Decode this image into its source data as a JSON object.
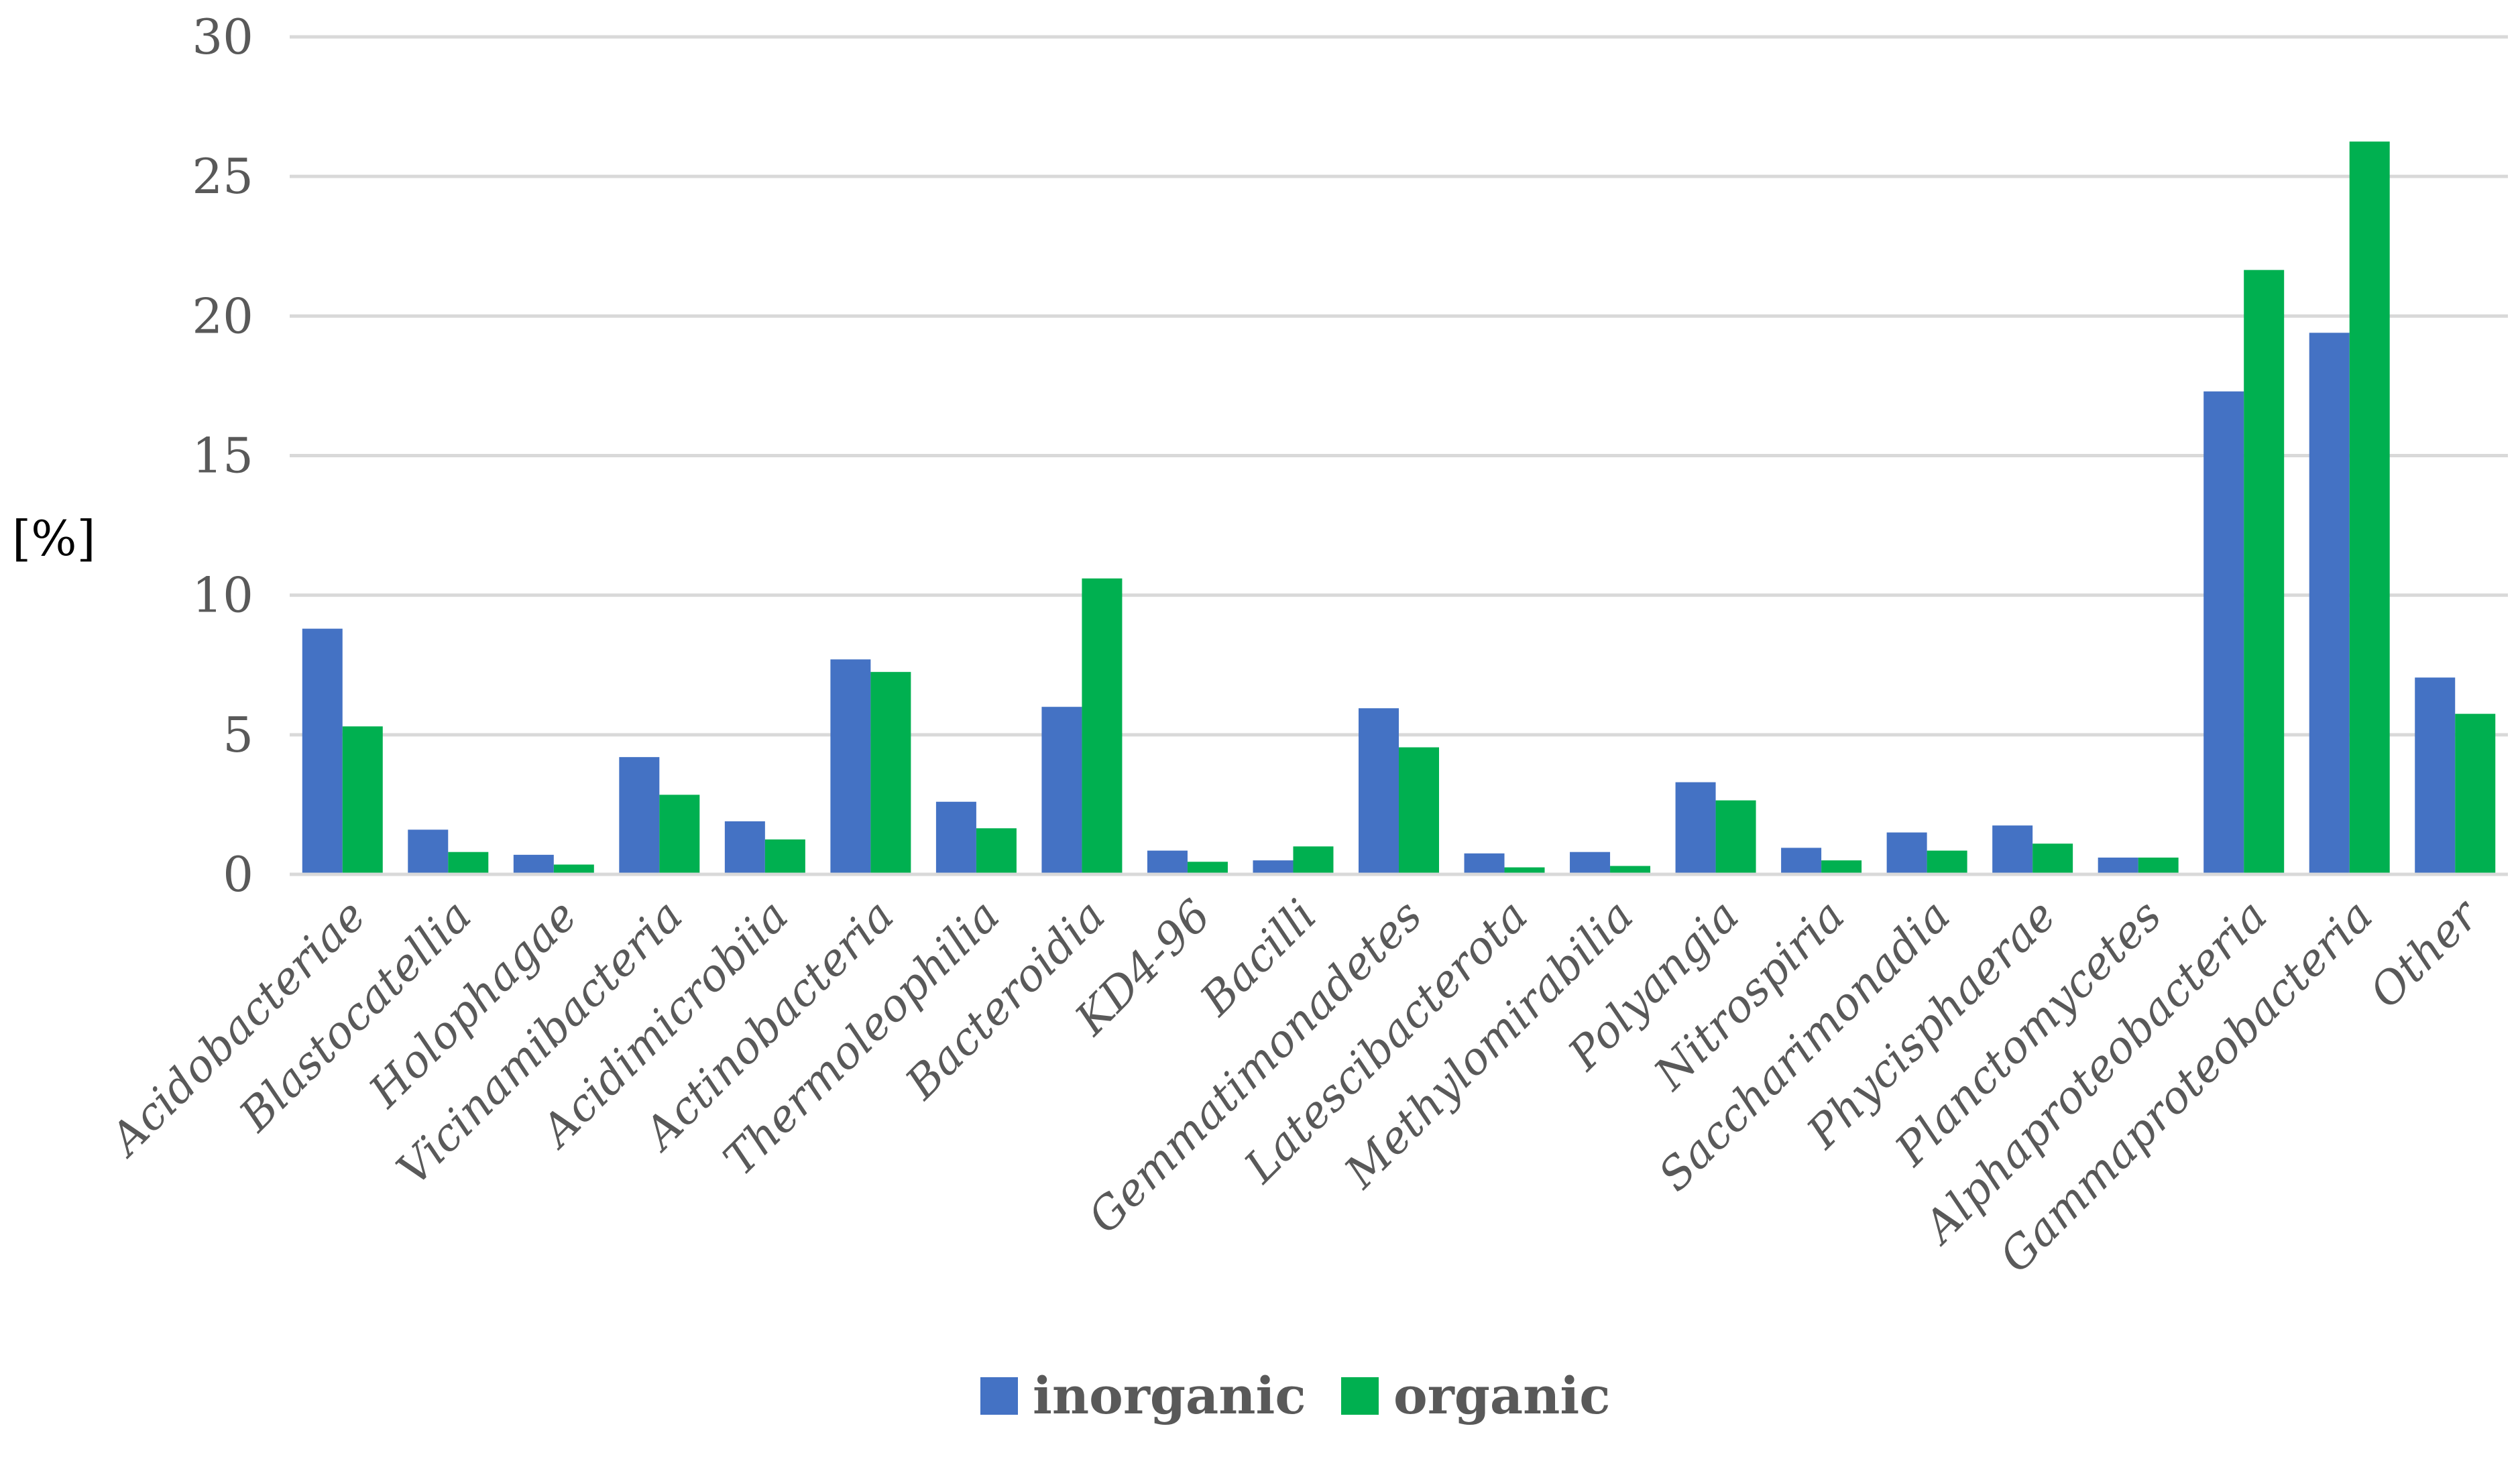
{
  "chart_data": {
    "type": "bar",
    "title": "",
    "xlabel": "",
    "ylabel": "[%]",
    "ylim": [
      0,
      30
    ],
    "yticks": [
      0,
      5,
      10,
      15,
      20,
      25,
      30
    ],
    "grid": true,
    "legend_position": "bottom-center",
    "categories": [
      "Acidobacteriae",
      "Blastocatellia",
      "Holophagae",
      "Vicinamibacteria",
      "Acidimicrobiia",
      "Actinobacteria",
      "Thermoleophilia",
      "Bacteroidia",
      "KD4-96",
      "Bacilli",
      "Gemmatimonadetes",
      "Latescibacterota",
      "Methylomirabilia",
      "Polyangia",
      "Nitrospiria",
      "Saccharimonadia",
      "Phycisphaerae",
      "Planctomycetes",
      "Alphaproteobacteria",
      "Gammaproteobacteria",
      "Other"
    ],
    "series": [
      {
        "name": "inorganic",
        "color": "#4472c4",
        "values": [
          8.8,
          1.6,
          0.7,
          4.2,
          1.9,
          7.7,
          2.6,
          6.0,
          0.85,
          0.5,
          5.95,
          0.75,
          0.8,
          3.3,
          0.95,
          1.5,
          1.75,
          0.6,
          17.3,
          19.4,
          7.05
        ]
      },
      {
        "name": "organic",
        "color": "#00b050",
        "values": [
          5.3,
          0.8,
          0.35,
          2.85,
          1.25,
          7.25,
          1.65,
          10.6,
          0.45,
          1.0,
          4.55,
          0.25,
          0.3,
          2.65,
          0.5,
          0.85,
          1.1,
          0.6,
          21.65,
          26.25,
          5.75
        ]
      }
    ]
  }
}
